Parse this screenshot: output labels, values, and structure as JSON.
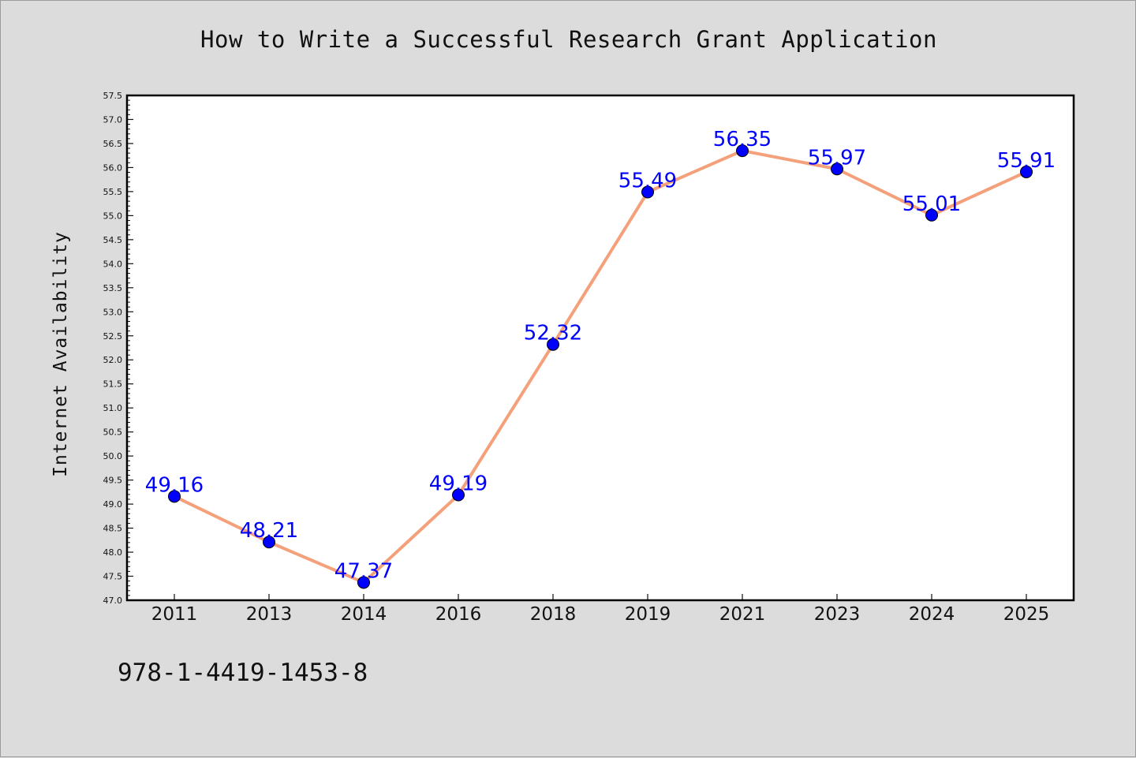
{
  "chart_data": {
    "type": "line",
    "title": "How to Write a Successful Research Grant Application",
    "xlabel": "",
    "ylabel": "Internet Availability",
    "categories": [
      "2011",
      "2013",
      "2014",
      "2016",
      "2018",
      "2019",
      "2021",
      "2023",
      "2024",
      "2025"
    ],
    "series": [
      {
        "values": [
          49.16,
          48.21,
          47.37,
          49.19,
          52.32,
          55.49,
          56.35,
          55.97,
          55.01,
          55.91
        ],
        "data_labels": [
          "49.16",
          "48.21",
          "47.37",
          "49.19",
          "52.32",
          "55.49",
          "56.35",
          "55.97",
          "55.01",
          "55.91"
        ],
        "line_color": "#f4a07a",
        "marker_color": "#0000ff"
      }
    ],
    "ylim": [
      47.0,
      57.5
    ],
    "y_ticks": [
      "47.0",
      "47.5",
      "48.0",
      "48.5",
      "49.0",
      "49.5",
      "50.0",
      "50.5",
      "51.0",
      "51.5",
      "52.0",
      "52.5",
      "53.0",
      "53.5",
      "54.0",
      "54.5",
      "55.0",
      "55.5",
      "56.0",
      "56.5",
      "57.0",
      "57.5"
    ],
    "grid": false,
    "legend": "none",
    "label_color": "#0000ff",
    "background": "#dcdcdc",
    "plot_background": "#ffffff"
  },
  "footer": {
    "identifier": "978-1-4419-1453-8"
  }
}
